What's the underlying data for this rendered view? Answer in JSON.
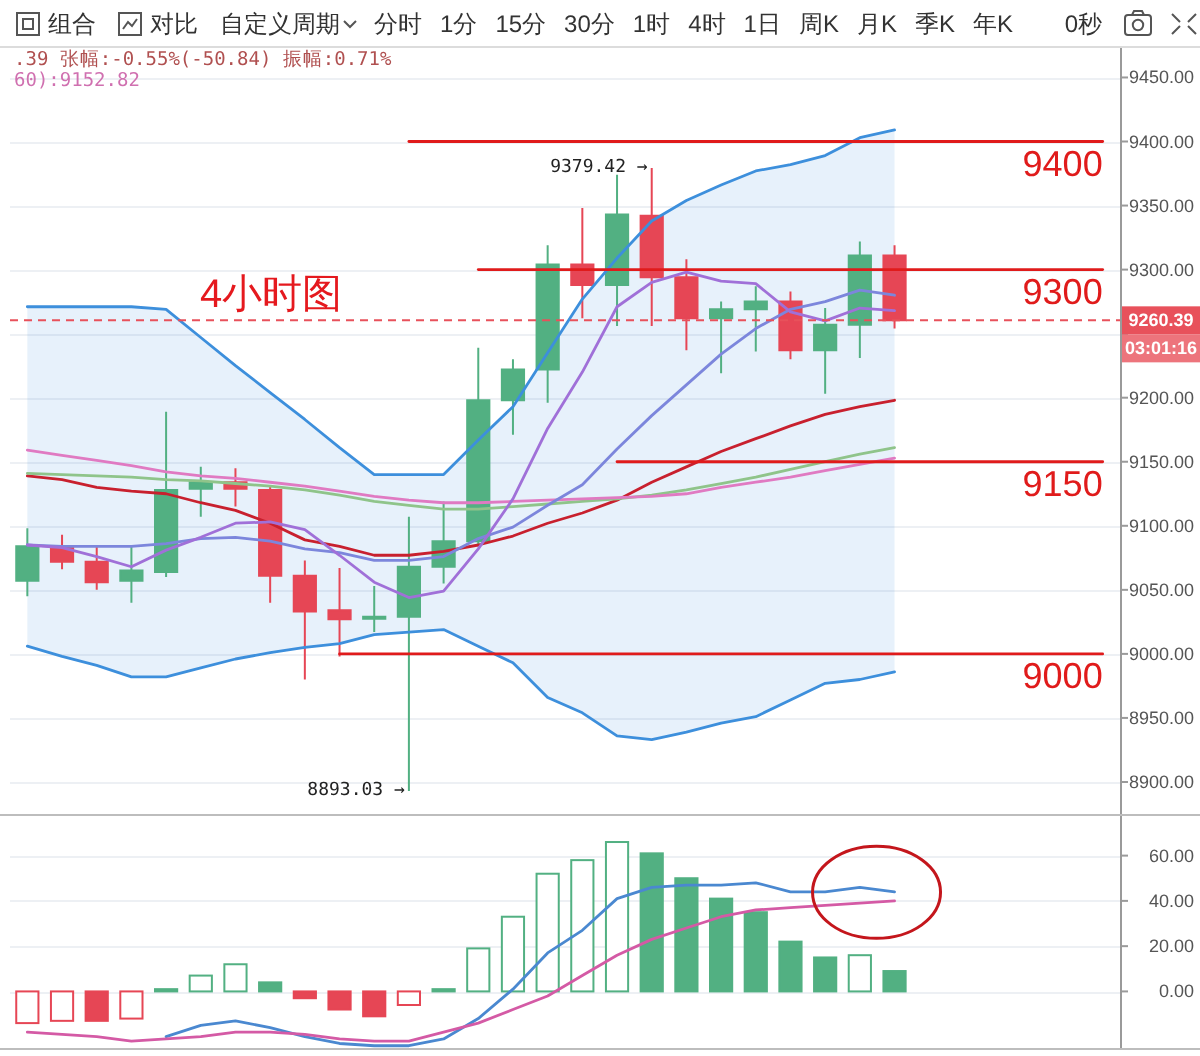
{
  "chart_data": [
    {
      "type": "candlestick",
      "title": "4小时图",
      "categories": [
        null,
        null,
        null,
        null,
        null,
        null,
        null,
        null,
        null,
        null,
        null,
        null,
        null,
        null,
        null,
        null,
        null,
        null,
        null,
        null,
        null,
        null,
        null,
        null,
        null,
        null,
        null,
        null,
        null,
        null,
        null,
        null
      ],
      "ohlc": [
        [
          9057,
          9098,
          9045,
          9084
        ],
        [
          9084,
          9093,
          9066,
          9072
        ],
        [
          9072,
          9084,
          9050,
          9056
        ],
        [
          9057,
          9084,
          9040,
          9065
        ],
        [
          9064,
          9189,
          9060,
          9128
        ],
        [
          9129,
          9146,
          9107,
          9134
        ],
        [
          9134,
          9145,
          9115,
          9129
        ],
        [
          9128,
          9131,
          9040,
          9061
        ],
        [
          9061,
          9073,
          8980,
          9033
        ],
        [
          9034,
          9067,
          8998,
          9027
        ],
        [
          9028,
          9053,
          9017,
          9029
        ],
        [
          9029,
          9107,
          8893.03,
          9068
        ],
        [
          9068,
          9119,
          9055,
          9088
        ],
        [
          9088,
          9239,
          9084,
          9198
        ],
        [
          9198,
          9230,
          9171,
          9222
        ],
        [
          9222,
          9319,
          9196,
          9304
        ],
        [
          9304,
          9348,
          9262,
          9288
        ],
        [
          9288,
          9374,
          9256,
          9343
        ],
        [
          9342,
          9379.42,
          9256,
          9294
        ],
        [
          9294,
          9308,
          9237,
          9262
        ],
        [
          9262,
          9275,
          9219,
          9269
        ],
        [
          9269,
          9287,
          9236,
          9275
        ],
        [
          9275,
          9283,
          9230,
          9237
        ],
        [
          9237,
          9270,
          9203,
          9257
        ],
        [
          9257,
          9322,
          9231,
          9311
        ],
        [
          9311,
          9319,
          9254,
          9260.39
        ],
        null,
        null,
        null,
        null,
        null,
        null
      ],
      "colors": [
        "#52b082",
        "#e64655",
        "#e64655",
        "#52b082",
        "#52b082",
        "#52b082",
        "#e64655",
        "#e64655",
        "#e64655",
        "#e64655",
        "#52b082",
        "#52b082",
        "#52b082",
        "#52b082",
        "#52b082",
        "#52b082",
        "#e64655",
        "#52b082",
        "#e64655",
        "#e64655",
        "#52b082",
        "#52b082",
        "#e64655",
        "#52b082",
        "#52b082",
        "#e64655",
        null,
        null,
        null,
        null,
        null,
        null
      ],
      "series": [
        {
          "type": "line",
          "color": "#3d8fdc",
          "values": [
            9271,
            9271,
            9271,
            9271,
            9269,
            9247,
            9225,
            9204,
            9183,
            9161,
            9140,
            9140,
            9140,
            9167,
            9193,
            9235,
            9277,
            9309,
            9338,
            9354,
            9366,
            9377,
            9382,
            9389,
            9403,
            9409,
            null,
            null,
            null,
            null,
            null,
            null
          ],
          "lower": [
            9006,
            8998,
            8991,
            8982,
            8982,
            8989,
            8996,
            9001,
            9005,
            9008,
            9015,
            9017,
            9019,
            9006,
            8993,
            8966,
            8954,
            8936,
            8933,
            8939,
            8946,
            8951,
            8964,
            8977,
            8980,
            8986,
            null,
            null,
            null,
            null,
            null,
            null
          ],
          "upper": [
            9271,
            9271,
            9271,
            9271,
            9269,
            9247,
            9225,
            9204,
            9183,
            9161,
            9140,
            9140,
            9140,
            9167,
            9193,
            9235,
            9277,
            9309,
            9338,
            9354,
            9366,
            9377,
            9382,
            9389,
            9403,
            9409,
            null,
            null,
            null,
            null,
            null,
            null
          ]
        },
        {
          "type": "line",
          "color": "#3d8fdc",
          "values": [
            9006,
            8998,
            8991,
            8982,
            8982,
            8989,
            8996,
            9001,
            9005,
            9008,
            9015,
            9017,
            9019,
            9006,
            8993,
            8966,
            8954,
            8936,
            8933,
            8939,
            8946,
            8951,
            8964,
            8977,
            8980,
            8986,
            null,
            null,
            null,
            null,
            null,
            null
          ]
        },
        {
          "type": "line",
          "color": "#c8202e",
          "values": [
            9139,
            9136,
            9130,
            9127,
            9125,
            9118,
            9112,
            9102,
            9089,
            9084,
            9077,
            9077,
            9080,
            9085,
            9092,
            9102,
            9110,
            9120,
            9134,
            9146,
            9158,
            9168,
            9178,
            9187,
            9193,
            9198,
            null,
            null,
            null,
            null,
            null,
            null
          ]
        },
        {
          "type": "line",
          "color": "#8fc48a",
          "values": [
            9141,
            9140,
            9139,
            9138,
            9136,
            9135,
            9133,
            9131,
            9128,
            9124,
            9119,
            9116,
            9113,
            9113,
            9115,
            9117,
            9119,
            9121,
            9124,
            9128,
            9133,
            9138,
            9144,
            9150,
            9156,
            9161,
            null,
            null,
            null,
            null,
            null,
            null
          ]
        },
        {
          "type": "line",
          "color": "#e07ac2",
          "values": [
            9159,
            9155,
            9151,
            9147,
            9142,
            9139,
            9137,
            9134,
            9131,
            9127,
            9123,
            9120,
            9118,
            9118,
            9119,
            9120,
            9121,
            9122,
            9123,
            9125,
            9130,
            9134,
            9138,
            9143,
            9148,
            9152.82,
            null,
            null,
            null,
            null,
            null,
            null
          ]
        },
        {
          "type": "line",
          "color": "#7c86dc",
          "values": [
            9085,
            9084,
            9084,
            9084,
            9086,
            9090,
            9091,
            9088,
            9082,
            9079,
            9073,
            9073,
            9076,
            9090,
            9099,
            9116,
            9132,
            9160,
            9186,
            9210,
            9234,
            9254,
            9269,
            9275,
            9284,
            9280,
            null,
            null,
            null,
            null,
            null,
            null
          ]
        },
        {
          "type": "line",
          "color": "#a070d8",
          "values": [
            9085,
            9083,
            9076,
            9068,
            9081,
            9091,
            9102,
            9103,
            9097,
            9077,
            9056,
            9044,
            9049,
            9082,
            9121,
            9176,
            9220,
            9271,
            9290,
            9298,
            9291,
            9289,
            9267,
            9260,
            9270,
            9268,
            null,
            null,
            null,
            null,
            null,
            null
          ]
        },
        {
          "type": "line",
          "name": "9400",
          "color": "#e01b1b",
          "values": [
            null,
            null,
            null,
            null,
            null,
            null,
            null,
            null,
            null,
            null,
            null,
            9400,
            9400,
            9400,
            9400,
            9400,
            9400,
            9400,
            9400,
            9400,
            9400,
            9400,
            9400,
            9400,
            9400,
            9400,
            9400,
            9400,
            9400,
            9400,
            9400,
            9400
          ]
        },
        {
          "type": "line",
          "name": "9300",
          "color": "#e01b1b",
          "values": [
            null,
            null,
            null,
            null,
            null,
            null,
            null,
            null,
            null,
            null,
            null,
            null,
            null,
            9300,
            9300,
            9300,
            9300,
            9300,
            9300,
            9300,
            9300,
            9300,
            9300,
            9300,
            9300,
            9300,
            9300,
            9300,
            9300,
            9300,
            9300,
            9300
          ]
        },
        {
          "type": "line",
          "name": "9150",
          "color": "#e01b1b",
          "values": [
            null,
            null,
            null,
            null,
            null,
            null,
            null,
            null,
            null,
            null,
            null,
            null,
            null,
            null,
            null,
            null,
            null,
            9150,
            9150,
            9150,
            9150,
            9150,
            9150,
            9150,
            9150,
            9150,
            9150,
            9150,
            9150,
            9150,
            9150,
            9150
          ]
        },
        {
          "type": "line",
          "name": "9000",
          "color": "#e01b1b",
          "values": [
            null,
            null,
            null,
            null,
            null,
            null,
            null,
            null,
            null,
            9000,
            9000,
            9000,
            9000,
            9000,
            9000,
            9000,
            9000,
            9000,
            9000,
            9000,
            9000,
            9000,
            9000,
            9000,
            9000,
            9000,
            9000,
            9000,
            9000,
            9000,
            9000,
            9000
          ]
        }
      ],
      "ylim": [
        8875,
        9473
      ],
      "yticks": [
        {
          "value": 8900,
          "label": "8900.00"
        },
        {
          "value": 8950,
          "label": "8950.00"
        },
        {
          "value": 9000,
          "label": "9000.00"
        },
        {
          "value": 9050,
          "label": "9050.00"
        },
        {
          "value": 9100,
          "label": "9100.00"
        },
        {
          "value": 9150,
          "label": "9150.00"
        },
        {
          "value": 9200,
          "label": "9200.00"
        },
        {
          "value": 9250,
          "label": null
        },
        {
          "value": 9300,
          "label": "9300.00"
        },
        {
          "value": 9350,
          "label": "9350.00"
        },
        {
          "value": 9400,
          "label": "9400.00"
        },
        {
          "value": 9450,
          "label": "9450.00"
        }
      ],
      "grid": "y",
      "tick_labels": "y",
      "ref_lines": [
        {
          "axis": "y",
          "value": 9260.39,
          "label": "9260.39",
          "color": "#e8515b",
          "line_style": "dashed"
        }
      ],
      "annotations": [
        "组合",
        "对比",
        "自定义周期",
        "分时",
        "1分",
        "15分",
        "30分",
        "1时",
        "4时",
        "1日",
        "周K",
        "月K",
        "季K",
        "年K",
        "0秒",
        ".39 张幅:-0.55%(-50.84) 振幅:0.71%",
        "60):9152.82",
        "03:01:16",
        "9379.42 →",
        "8893.03 →"
      ]
    },
    {
      "type": "bar",
      "categories": [
        null,
        null,
        null,
        null,
        null,
        null,
        null,
        null,
        null,
        null,
        null,
        null,
        null,
        null,
        null,
        null,
        null,
        null,
        null,
        null,
        null,
        null,
        null,
        null,
        null,
        null,
        null,
        null,
        null,
        null,
        null,
        null
      ],
      "series": [
        {
          "type": "bar",
          "values": [
            null,
            null,
            -13,
            null,
            1,
            null,
            null,
            4,
            -3,
            -8,
            -11,
            null,
            1,
            null,
            null,
            null,
            null,
            null,
            61,
            50,
            41,
            35,
            22,
            15,
            null,
            9,
            null,
            null,
            null,
            null,
            null,
            null
          ],
          "colors": [
            null,
            null,
            "#e64655",
            null,
            "#52b082",
            null,
            null,
            "#52b082",
            "#e64655",
            "#e64655",
            "#e64655",
            null,
            "#52b082",
            null,
            null,
            null,
            null,
            null,
            "#52b082",
            "#52b082",
            "#52b082",
            "#52b082",
            "#52b082",
            "#52b082",
            null,
            "#52b082",
            null,
            null,
            null,
            null,
            null,
            null
          ]
        },
        {
          "type": "bar",
          "values": [
            -14,
            -13,
            null,
            -12,
            null,
            7,
            12,
            null,
            null,
            null,
            null,
            -6,
            null,
            19,
            33,
            52,
            58,
            66,
            null,
            null,
            null,
            null,
            null,
            null,
            16,
            null,
            null,
            null,
            null,
            null,
            null,
            null
          ],
          "colors": [
            "#e64655",
            "#e64655",
            null,
            "#e64655",
            null,
            "#52b082",
            "#52b082",
            null,
            null,
            null,
            null,
            "#e64655",
            null,
            "#52b082",
            "#52b082",
            "#52b082",
            "#52b082",
            "#52b082",
            null,
            null,
            null,
            null,
            null,
            null,
            "#52b082",
            null,
            null,
            null,
            null,
            null,
            null,
            null
          ]
        },
        {
          "type": "line",
          "color": "#4a88d0",
          "values": [
            null,
            null,
            null,
            null,
            -20,
            -15,
            -13,
            -16,
            -20,
            -23,
            -24,
            -24,
            -21,
            -12,
            1,
            17,
            27,
            41,
            46,
            47,
            47,
            48,
            44,
            44,
            46,
            44,
            null,
            null,
            null,
            null,
            null,
            null
          ]
        },
        {
          "type": "line",
          "color": "#d45aa5",
          "values": [
            -18,
            -19,
            -20,
            -22,
            -21,
            -20,
            -18,
            -18,
            -19,
            -21,
            -22,
            -22,
            -18,
            -14,
            -8,
            -2,
            7,
            16,
            23,
            28,
            33,
            36,
            37,
            38,
            39,
            40,
            null,
            null,
            null,
            null,
            null,
            null
          ]
        }
      ],
      "ylim": [
        -25,
        77.5
      ],
      "yticks": [
        {
          "value": 0,
          "label": "0.00"
        },
        {
          "value": 20,
          "label": "20.00"
        },
        {
          "value": 40,
          "label": "40.00"
        },
        {
          "value": 60,
          "label": "60.00"
        }
      ],
      "grid": "y",
      "tick_labels": "y"
    }
  ]
}
